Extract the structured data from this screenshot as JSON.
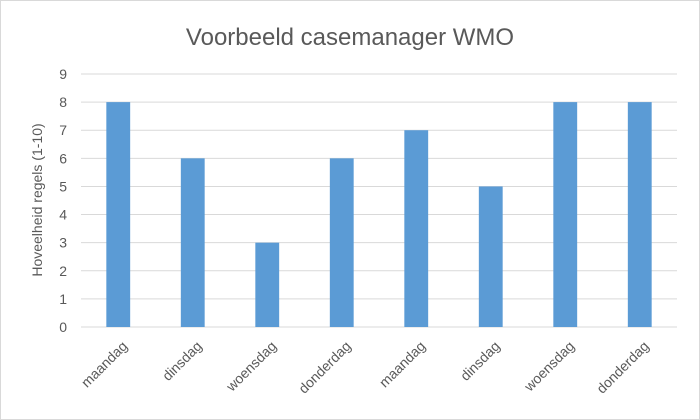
{
  "chart_data": {
    "type": "bar",
    "title": "Voorbeeld casemanager WMO",
    "xlabel": "",
    "ylabel": "Hoveelheid  regels (1-10)",
    "categories": [
      "maandag",
      "dinsdag",
      "woensdag",
      "donderdag",
      "maandag",
      "dinsdag",
      "woensdag",
      "donderdag"
    ],
    "values": [
      8,
      6,
      3,
      6,
      7,
      5,
      8,
      8
    ],
    "ylim": [
      0,
      9
    ],
    "yticks": [
      0,
      1,
      2,
      3,
      4,
      5,
      6,
      7,
      8,
      9
    ],
    "grid": true,
    "legend": "none",
    "bar_color": "#5b9bd5",
    "grid_color": "#d9d9d9"
  }
}
